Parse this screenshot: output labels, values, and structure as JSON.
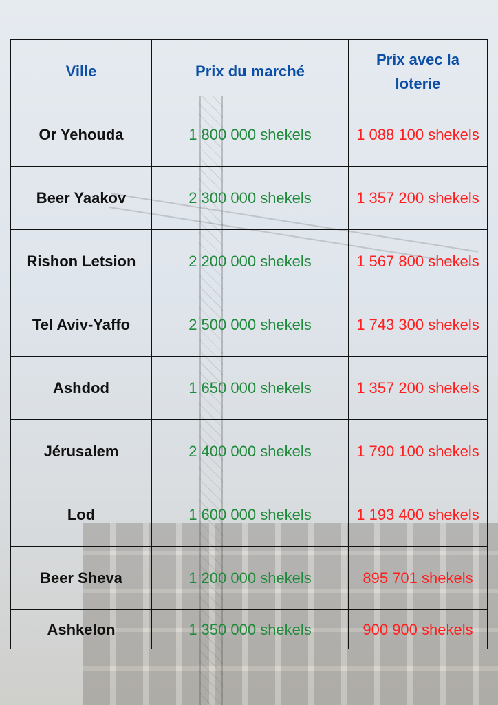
{
  "table": {
    "headers": [
      "Ville",
      "Prix du marché",
      "Prix avec la loterie"
    ],
    "rows": [
      {
        "city": "Or Yehouda",
        "market": "1 800 000 shekels",
        "lottery": "1 088 100 shekels"
      },
      {
        "city": "Beer Yaakov",
        "market": "2 300 000 shekels",
        "lottery": "1 357 200 shekels"
      },
      {
        "city": "Rishon Letsion",
        "market": "2 200 000 shekels",
        "lottery": "1 567 800 shekels"
      },
      {
        "city": "Tel Aviv-Yaffo",
        "market": "2 500 000 shekels",
        "lottery": "1 743 300 shekels"
      },
      {
        "city": "Ashdod",
        "market": "1 650 000 shekels",
        "lottery": "1 357 200 shekels"
      },
      {
        "city": "Jérusalem",
        "market": "2 400 000 shekels",
        "lottery": "1 790 100 shekels"
      },
      {
        "city": "Lod",
        "market": "1 600 000 shekels",
        "lottery": "1 193 400 shekels"
      },
      {
        "city": "Beer Sheva",
        "market": "1 200 000 shekels",
        "lottery": "895 701 shekels"
      },
      {
        "city": "Ashkelon",
        "market": "1 350 000 shekels",
        "lottery": "900 900 shekels"
      }
    ]
  },
  "colors": {
    "header": "#0d4fa6",
    "market": "#1f8a3b",
    "lottery": "#ff1f1f"
  }
}
